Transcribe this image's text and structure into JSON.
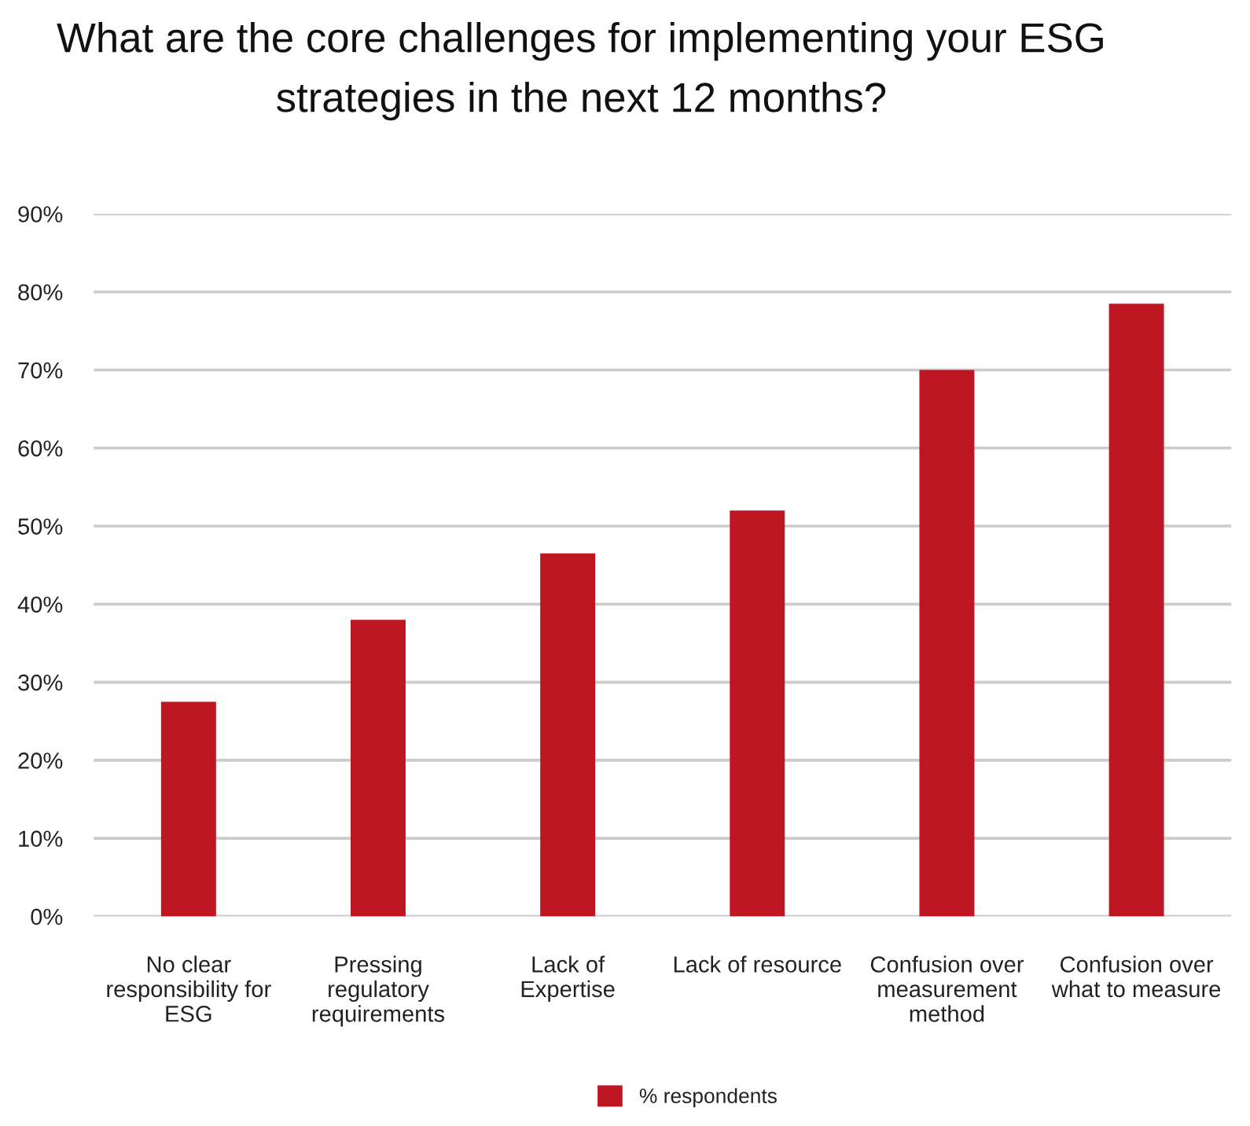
{
  "chart_data": {
    "type": "bar",
    "title": "What are the core challenges for implementing your ESG strategies in the next 12 months?",
    "categories": [
      "No clear responsibility for ESG",
      "Pressing regulatory requirements",
      "Lack of Expertise",
      "Lack of resource",
      "Confusion over measurement method",
      "Confusion over what to measure"
    ],
    "series": [
      {
        "name": "% respondents",
        "color": "#be1622",
        "values": [
          27.5,
          38,
          46.5,
          52,
          70,
          78.5
        ]
      }
    ],
    "ylim": [
      0,
      90
    ],
    "yticks": [
      {
        "value": 0,
        "label": "0%"
      },
      {
        "value": 10,
        "label": "10%"
      },
      {
        "value": 20,
        "label": "20%"
      },
      {
        "value": 30,
        "label": "30%"
      },
      {
        "value": 40,
        "label": "40%"
      },
      {
        "value": 50,
        "label": "50%"
      },
      {
        "value": 60,
        "label": "60%"
      },
      {
        "value": 70,
        "label": "70%"
      },
      {
        "value": 80,
        "label": "80%"
      },
      {
        "value": 90,
        "label": "90%"
      }
    ],
    "grid": "y",
    "legend": "bottom"
  }
}
